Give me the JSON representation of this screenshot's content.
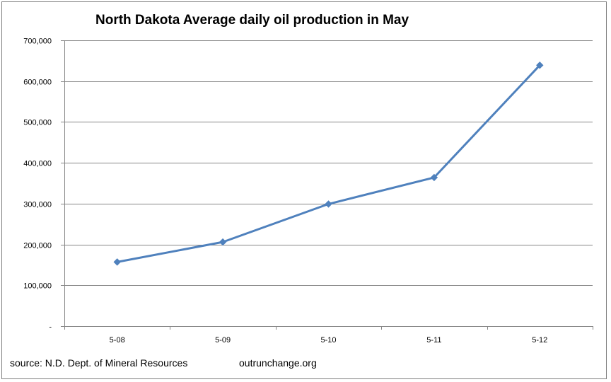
{
  "chart_data": {
    "type": "line",
    "title": "North Dakota Average daily oil production in May",
    "xlabel": "",
    "ylabel": "",
    "categories": [
      "5-08",
      "5-09",
      "5-10",
      "5-11",
      "5-12"
    ],
    "series": [
      {
        "values": [
          157000,
          206000,
          299000,
          364000,
          639000
        ]
      }
    ],
    "ylim": [
      0,
      700000
    ],
    "ytick_labels": [
      "-",
      "100,000",
      "200,000",
      "300,000",
      "400,000",
      "500,000",
      "600,000",
      "700,000"
    ],
    "grid": true,
    "legend": "none",
    "line_color": "#4f81bd",
    "gridline_color": "#868686"
  },
  "footer": {
    "source": "source: N.D. Dept. of Mineral Resources",
    "site": "outrunchange.org"
  }
}
